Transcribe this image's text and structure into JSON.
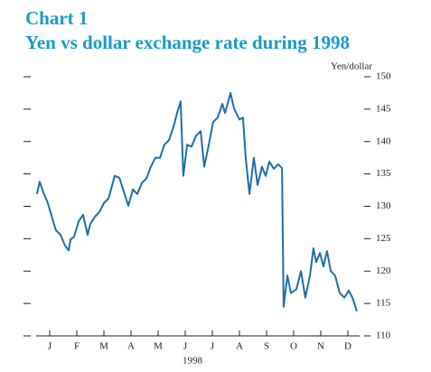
{
  "chart_data": {
    "type": "line",
    "title": "Chart 1",
    "subtitle": "Yen vs dollar exchange rate during 1998",
    "y_label": "Yen/dollar",
    "x_label": "1998",
    "xlim": [
      0,
      12
    ],
    "xticks": [
      {
        "value": 0.5,
        "label": "J"
      },
      {
        "value": 1.5,
        "label": "F"
      },
      {
        "value": 2.5,
        "label": "M"
      },
      {
        "value": 3.5,
        "label": "A"
      },
      {
        "value": 4.5,
        "label": "M"
      },
      {
        "value": 5.5,
        "label": "J"
      },
      {
        "value": 6.5,
        "label": "J"
      },
      {
        "value": 7.5,
        "label": "A"
      },
      {
        "value": 8.5,
        "label": "S"
      },
      {
        "value": 9.5,
        "label": "O"
      },
      {
        "value": 10.5,
        "label": "N"
      },
      {
        "value": 11.5,
        "label": "D"
      }
    ],
    "ylim": [
      110,
      150
    ],
    "yticks": [
      110,
      115,
      120,
      125,
      130,
      135,
      140,
      145,
      150
    ],
    "x": [
      0.03,
      0.13,
      0.27,
      0.43,
      0.6,
      0.73,
      0.9,
      1.07,
      1.2,
      1.27,
      1.4,
      1.57,
      1.73,
      1.9,
      2.0,
      2.17,
      2.33,
      2.5,
      2.67,
      2.9,
      3.07,
      3.23,
      3.4,
      3.57,
      3.73,
      3.9,
      4.07,
      4.23,
      4.4,
      4.57,
      4.73,
      4.9,
      5.07,
      5.2,
      5.33,
      5.43,
      5.57,
      5.73,
      5.9,
      6.07,
      6.2,
      6.37,
      6.53,
      6.7,
      6.87,
      6.97,
      7.17,
      7.3,
      7.5,
      7.63,
      7.73,
      7.87,
      8.03,
      8.17,
      8.33,
      8.47,
      8.6,
      8.77,
      8.93,
      9.07,
      9.13,
      9.27,
      9.4,
      9.6,
      9.77,
      9.93,
      10.1,
      10.23,
      10.33,
      10.47,
      10.6,
      10.73,
      10.87,
      11.03,
      11.2,
      11.37,
      11.53,
      11.67,
      11.83
    ],
    "series": [
      {
        "name": "Yen/dollar",
        "color": "#1f6fa8",
        "values": [
          131.9,
          133.8,
          132.1,
          130.5,
          128.1,
          126.3,
          125.6,
          123.9,
          123.2,
          124.9,
          125.3,
          127.7,
          128.7,
          125.6,
          127.3,
          128.4,
          129.1,
          130.5,
          131.2,
          134.7,
          134.4,
          132.3,
          130.1,
          132.6,
          131.9,
          133.6,
          134.3,
          136.1,
          137.5,
          137.5,
          139.5,
          140.2,
          142.3,
          144.4,
          146.2,
          134.7,
          139.5,
          139.2,
          140.9,
          141.6,
          136.1,
          139.5,
          143.0,
          143.7,
          145.8,
          144.4,
          147.5,
          145.1,
          143.4,
          143.7,
          137.5,
          131.9,
          137.5,
          133.3,
          136.1,
          134.7,
          136.9,
          135.8,
          136.5,
          135.9,
          114.5,
          119.3,
          116.6,
          117.2,
          120.0,
          115.9,
          119.3,
          123.5,
          121.4,
          122.8,
          120.7,
          123.1,
          120.0,
          119.3,
          116.6,
          115.9,
          117.0,
          115.9,
          113.8
        ]
      }
    ]
  }
}
